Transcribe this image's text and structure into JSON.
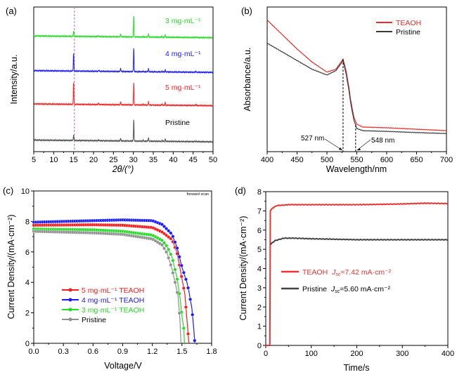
{
  "chart_data": [
    {
      "panel": "(a)",
      "type": "line",
      "xlabel": "2θ/(°)",
      "ylabel": "Intensity/a.u.",
      "xlim": [
        5,
        50
      ],
      "ylim": [
        0,
        100
      ],
      "xticks": [
        5,
        10,
        15,
        20,
        25,
        30,
        35,
        40,
        45,
        50
      ],
      "reference_line_x": 15.2,
      "series": [
        {
          "name": "Pristine",
          "color": "#505050",
          "baseline": 8,
          "peaks": [
            [
              15.0,
              4
            ],
            [
              21.3,
              0.8
            ],
            [
              26.8,
              2.2
            ],
            [
              30.1,
              15.5
            ],
            [
              32.5,
              0.6
            ],
            [
              33.8,
              2.6
            ],
            [
              37.2,
              0.5
            ],
            [
              38.0,
              1.8
            ],
            [
              45.7,
              0.6
            ]
          ]
        },
        {
          "name": "5 mg·mL⁻¹",
          "color": "#ff2020",
          "baseline": 33,
          "peaks": [
            [
              15.0,
              16
            ],
            [
              21.3,
              1.2
            ],
            [
              26.8,
              2.4
            ],
            [
              30.1,
              16
            ],
            [
              32.5,
              0.6
            ],
            [
              33.8,
              2.6
            ],
            [
              37.2,
              0.7
            ],
            [
              38.0,
              2
            ],
            [
              45.7,
              0.8
            ]
          ]
        },
        {
          "name": "4 mg·mL⁻¹",
          "color": "#1a1aff",
          "baseline": 56,
          "peaks": [
            [
              15.0,
              13
            ],
            [
              21.3,
              1
            ],
            [
              26.8,
              2.4
            ],
            [
              30.1,
              17
            ],
            [
              32.5,
              0.6
            ],
            [
              33.8,
              2.4
            ],
            [
              37.2,
              0.5
            ],
            [
              38.0,
              1.6
            ],
            [
              45.7,
              0.6
            ]
          ]
        },
        {
          "name": "3 mg·mL⁻¹",
          "color": "#22dd22",
          "baseline": 80,
          "peaks": [
            [
              15.0,
              4
            ],
            [
              21.3,
              0.8
            ],
            [
              26.8,
              2.2
            ],
            [
              30.1,
              15.5
            ],
            [
              32.5,
              0.5
            ],
            [
              33.8,
              2.6
            ],
            [
              37.2,
              0.5
            ],
            [
              38.0,
              1.8
            ],
            [
              45.7,
              0.6
            ]
          ]
        }
      ]
    },
    {
      "panel": "(b)",
      "type": "line",
      "xlabel": "Wavelength/nm",
      "ylabel": "Absorbance/a.u.",
      "xlim": [
        400,
        700
      ],
      "ylim": [
        0,
        100
      ],
      "xticks": [
        400,
        450,
        500,
        550,
        600,
        650,
        700
      ],
      "annotations": [
        {
          "text": "527 nm",
          "x": 527
        },
        {
          "text": "548 nm",
          "x": 548
        }
      ],
      "series": [
        {
          "name": "TEAOH",
          "color": "#ee2a2a",
          "x": [
            400,
            425,
            450,
            475,
            500,
            515,
            522,
            527,
            532,
            537,
            540,
            545,
            550,
            560,
            600,
            650,
            700
          ],
          "y": [
            91,
            81,
            71,
            62,
            55,
            57,
            61,
            64,
            56,
            44,
            35,
            24,
            19,
            17,
            16.5,
            15.5,
            14.5
          ]
        },
        {
          "name": "Pristine",
          "color": "#3a3a3a",
          "x": [
            400,
            425,
            450,
            475,
            500,
            515,
            522,
            527,
            532,
            537,
            540,
            545,
            550,
            560,
            600,
            650,
            700
          ],
          "y": [
            75,
            69,
            63,
            57,
            53,
            56,
            60,
            63,
            54,
            42,
            33,
            22,
            16,
            14.5,
            14,
            13.2,
            12.5
          ]
        }
      ]
    },
    {
      "panel": "(c)",
      "type": "line",
      "xlabel": "Voltage/V",
      "ylabel": "Current Density/(mA·cm⁻²)",
      "note": "forward scan",
      "xlim": [
        0,
        1.8
      ],
      "ylim": [
        0,
        10
      ],
      "xticks": [
        "0.0",
        "0.3",
        "0.6",
        "0.9",
        "1.2",
        "1.5",
        "1.8"
      ],
      "yticks": [
        0,
        2,
        4,
        6,
        8,
        10
      ],
      "series": [
        {
          "name": "5 mg·mL⁻¹ TEAOH",
          "color": "#ff1a1a",
          "x": [
            0,
            0.6,
            0.9,
            1.2,
            1.3,
            1.4,
            1.45,
            1.5,
            1.53,
            1.55,
            1.57
          ],
          "y": [
            7.75,
            7.78,
            7.75,
            7.6,
            7.3,
            6.8,
            5.95,
            4.25,
            3.2,
            1.55,
            0
          ]
        },
        {
          "name": "4 mg·mL⁻¹ TEAOH",
          "color": "#1a1aff",
          "x": [
            0,
            0.6,
            0.9,
            1.2,
            1.3,
            1.4,
            1.45,
            1.5,
            1.55,
            1.57,
            1.6,
            1.62,
            1.63
          ],
          "y": [
            7.95,
            8.05,
            8.1,
            8.05,
            7.8,
            7.15,
            6.3,
            5.0,
            4.0,
            3.4,
            2.3,
            0.9,
            0
          ]
        },
        {
          "name": "3 mg·mL⁻¹ TEAOH",
          "color": "#22dd22",
          "x": [
            0,
            0.6,
            0.9,
            1.2,
            1.3,
            1.35,
            1.4,
            1.45,
            1.48,
            1.5,
            1.52,
            1.525
          ],
          "y": [
            7.5,
            7.45,
            7.35,
            7.1,
            6.75,
            6.35,
            5.65,
            4.3,
            3.0,
            1.8,
            0.9,
            0
          ]
        },
        {
          "name": "Pristine",
          "color": "#909090",
          "x": [
            0,
            0.6,
            0.9,
            1.2,
            1.3,
            1.35,
            1.4,
            1.43,
            1.46,
            1.48,
            1.49
          ],
          "y": [
            7.35,
            7.25,
            7.15,
            6.85,
            6.45,
            5.9,
            4.85,
            4.0,
            3.1,
            1.5,
            0
          ]
        }
      ]
    },
    {
      "panel": "(d)",
      "type": "line",
      "xlabel": "Time/s",
      "ylabel": "Current Density/(mA·cm⁻²)",
      "xlim": [
        0,
        400
      ],
      "ylim": [
        0,
        8
      ],
      "xticks": [
        0,
        100,
        200,
        300,
        400
      ],
      "yticks": [
        0,
        1,
        2,
        3,
        4,
        5,
        6,
        7,
        8
      ],
      "series": [
        {
          "name": "TEAOH",
          "jsc_label": "=7.42 mA·cm⁻²",
          "color": "#ee3333",
          "x": [
            0,
            9,
            10,
            15,
            25,
            50,
            200,
            300,
            350,
            400
          ],
          "y": [
            0,
            0,
            7.0,
            7.15,
            7.28,
            7.32,
            7.32,
            7.36,
            7.4,
            7.38
          ]
        },
        {
          "name": "Pristine",
          "jsc_label": "=5.60 mA·cm⁻²",
          "color": "#444444",
          "x": [
            10,
            20,
            40,
            60,
            100,
            200,
            300,
            400
          ],
          "y": [
            5.25,
            5.45,
            5.58,
            5.58,
            5.55,
            5.5,
            5.5,
            5.5
          ]
        }
      ]
    }
  ],
  "labels": {
    "a": "(a)",
    "b": "(b)",
    "c": "(c)",
    "d": "(d)",
    "jsym": "J",
    "jsub": "sc"
  }
}
